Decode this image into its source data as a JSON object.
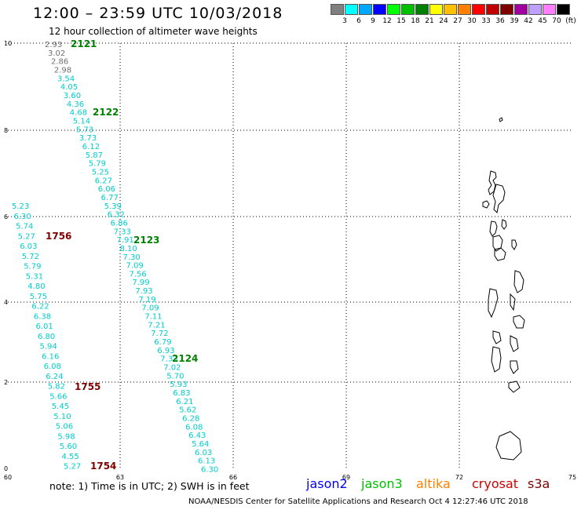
{
  "header": {
    "title": "12:00 – 23:59 UTC 10/03/2018",
    "subtitle": "12 hour collection of altimeter wave heights"
  },
  "legend": {
    "colors": [
      "#808080",
      "#00ffff",
      "#00a8ff",
      "#0000ff",
      "#00ff00",
      "#00c000",
      "#008000",
      "#ffff00",
      "#ffc000",
      "#ff8000",
      "#ff0000",
      "#c00000",
      "#800000",
      "#a000a0",
      "#c0a0ff",
      "#ff80ff",
      "#000000"
    ],
    "labels": [
      "3",
      "6",
      "9",
      "12",
      "15",
      "18",
      "21",
      "24",
      "27",
      "30",
      "33",
      "36",
      "39",
      "42",
      "45",
      "70",
      "(ft)"
    ]
  },
  "axes": {
    "x_ticks": [
      "60",
      "63",
      "66",
      "69",
      "72",
      "75"
    ],
    "y_ticks": [
      "0",
      "2",
      "4",
      "6",
      "8",
      "10"
    ]
  },
  "passes": [
    {
      "id": "2121",
      "color": "#008000"
    },
    {
      "id": "2122",
      "color": "#008000"
    },
    {
      "id": "2123",
      "color": "#008000"
    },
    {
      "id": "2124",
      "color": "#008000"
    },
    {
      "id": "1756",
      "color": "#800000"
    },
    {
      "id": "1755",
      "color": "#800000"
    },
    {
      "id": "1754",
      "color": "#800000"
    }
  ],
  "tracks": [
    {
      "name": "jason3-track-1",
      "color": "#00cccc",
      "gray_count": 4,
      "values": [
        "2.93",
        "3.02",
        "2.86",
        "2.98",
        "3.54",
        "4.05",
        "3.60",
        "4.36",
        "4.68",
        "5.14",
        "5.73",
        "3.73",
        "6.12",
        "5.87",
        "5.79",
        "5.25",
        "6.27",
        "6.06",
        "6.77",
        "5.39",
        "6.32",
        "6.86",
        "7.33",
        "7.91",
        "8.10",
        "7.30",
        "7.09",
        "7.56",
        "7.99",
        "7.93",
        "7.19",
        "7.09",
        "7.11",
        "7.21",
        "7.72",
        "6.79",
        "6.93",
        "7.33",
        "7.02",
        "5.70",
        "5.93",
        "6.83",
        "6.21",
        "5.62",
        "6.28",
        "6.08",
        "6.43",
        "5.64",
        "6.03",
        "6.13",
        "6.30"
      ]
    },
    {
      "name": "cryosat-track",
      "color": "#00cccc",
      "gray_count": 0,
      "values": [
        "5.23",
        "6.30",
        "5.74",
        "5.27",
        "6.03",
        "5.72",
        "5.79",
        "5.31",
        "4.80",
        "5.75",
        "6.22",
        "6.38",
        "6.01",
        "6.80",
        "5.94",
        "6.16",
        "6.08",
        "6.24",
        "5.82",
        "5.66",
        "5.45",
        "5.10",
        "5.06",
        "5.98",
        "5.60",
        "4.55",
        "5.27"
      ]
    }
  ],
  "note": "note: 1) Time is in UTC; 2) SWH is in feet",
  "satellites": [
    {
      "name": "jason2",
      "color": "#0000ff"
    },
    {
      "name": "jason3",
      "color": "#00c000"
    },
    {
      "name": "altika",
      "color": "#ff8000"
    },
    {
      "name": "cryosat",
      "color": "#d00000"
    },
    {
      "name": "s3a",
      "color": "#800000"
    }
  ],
  "footer": "NOAA/NESDIS Center for Satellite Applications and Research     Oct  4 12:27:46 UTC 2018"
}
